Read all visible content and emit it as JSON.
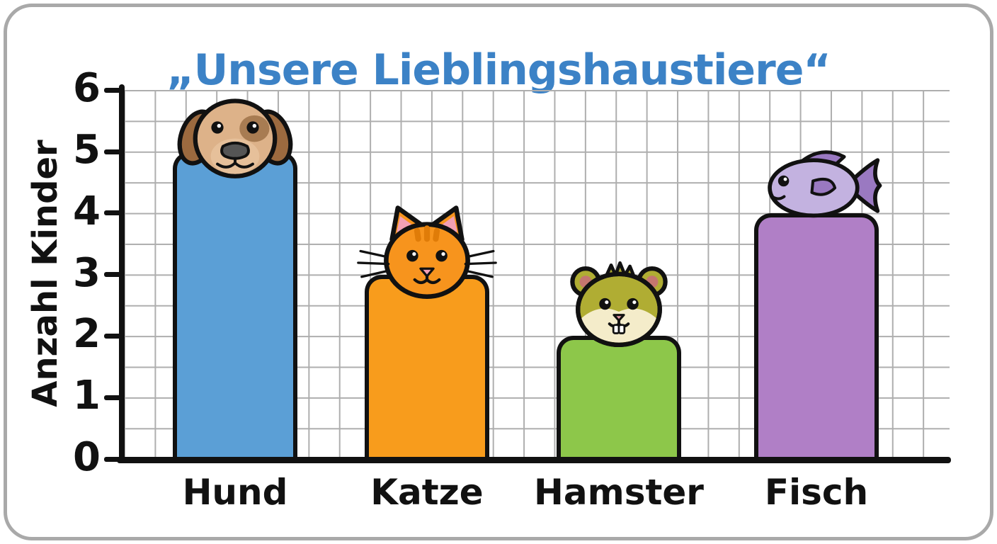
{
  "chart_data": {
    "type": "bar",
    "title": "„Unsere Lieblingshaustiere“",
    "title_color": "#3c82c6",
    "ylabel": "Anzahl Kinder",
    "xlabel": "",
    "categories": [
      "Hund",
      "Katze",
      "Hamster",
      "Fisch"
    ],
    "values": [
      5,
      3,
      2,
      4
    ],
    "bar_colors": [
      "#5b9fd6",
      "#f89c1c",
      "#8dc74a",
      "#b07fc6"
    ],
    "icons": [
      "dog-icon",
      "cat-icon",
      "hamster-icon",
      "fish-icon"
    ],
    "ylim": [
      0,
      6
    ],
    "yticks": [
      0,
      1,
      2,
      3,
      4,
      5,
      6
    ],
    "grid": "graph-paper squares, half-unit spacing, light gray",
    "legend_position": "none",
    "outline_color": "#111111",
    "frame_border_color": "#a9a9a9"
  }
}
